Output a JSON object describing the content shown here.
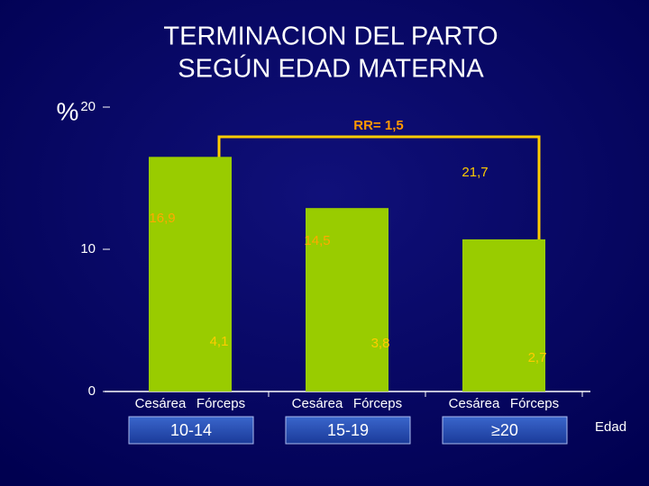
{
  "chart_data": {
    "type": "bar",
    "title": [
      "TERMINACION DEL PARTO",
      "SEGÚN EDAD MATERNA"
    ],
    "y_label": "%",
    "x_label": "Edad",
    "groups": [
      "10-14",
      "15-19",
      "≥20"
    ],
    "subcategories": [
      "Cesárea",
      "Fórceps"
    ],
    "values": [
      16.5,
      12.9,
      10.7
    ],
    "color": "#99cc00",
    "ylim": [
      0,
      20
    ],
    "yticks": [
      0,
      10,
      20
    ],
    "annotations": [
      "RR= 1,5",
      "16,9",
      "14,5",
      "21,7",
      "4,1",
      "3,8",
      "2,7"
    ]
  }
}
